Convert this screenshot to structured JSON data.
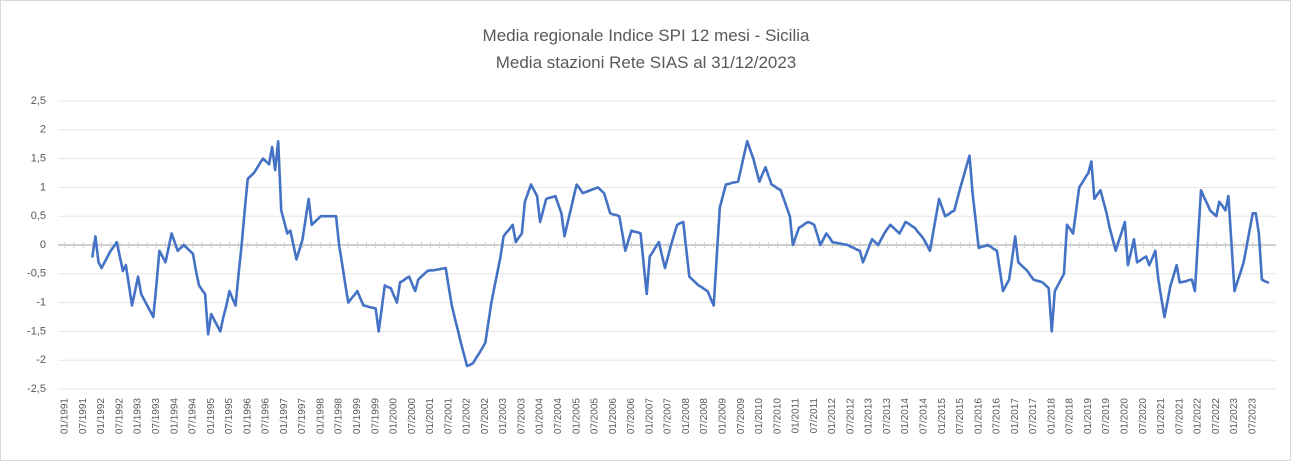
{
  "chart_data": {
    "type": "line",
    "title": "Media regionale Indice SPI 12 mesi - Sicilia",
    "subtitle": "Media stazioni Rete SIAS al 31/12/2023",
    "color": "#4472c4",
    "grid": true,
    "ylim": [
      -2.5,
      2.5
    ],
    "yticks": [
      {
        "value": -2.5,
        "label": "-2,5"
      },
      -2,
      {
        "value": -1.5,
        "label": "-1,5"
      },
      -1,
      {
        "value": -0.5,
        "label": "-0,5"
      },
      0,
      {
        "value": 0.5,
        "label": "0,5"
      },
      1,
      {
        "value": 1.5,
        "label": "1,5"
      },
      2,
      {
        "value": 2.5,
        "label": "2,5"
      }
    ],
    "categories": [
      "01/1991",
      null,
      null,
      null,
      null,
      null,
      "07/1991",
      null,
      null,
      null,
      null,
      null,
      "01/1992",
      null,
      null,
      null,
      null,
      null,
      "07/1992",
      null,
      null,
      null,
      null,
      null,
      "01/1993",
      null,
      null,
      null,
      null,
      null,
      "07/1993",
      null,
      null,
      null,
      null,
      null,
      "01/1994",
      null,
      null,
      null,
      null,
      null,
      "07/1994",
      null,
      null,
      null,
      null,
      null,
      "01/1995",
      null,
      null,
      null,
      null,
      null,
      "07/1995",
      null,
      null,
      null,
      null,
      null,
      "01/1996",
      null,
      null,
      null,
      null,
      null,
      "07/1996",
      null,
      null,
      null,
      null,
      null,
      "01/1997",
      null,
      null,
      null,
      null,
      null,
      "07/1997",
      null,
      null,
      null,
      null,
      null,
      "01/1998",
      null,
      null,
      null,
      null,
      null,
      "07/1998",
      null,
      null,
      null,
      null,
      null,
      "01/1999",
      null,
      null,
      null,
      null,
      null,
      "07/1999",
      null,
      null,
      null,
      null,
      null,
      "01/2000",
      null,
      null,
      null,
      null,
      null,
      "07/2000",
      null,
      null,
      null,
      null,
      null,
      "01/2001",
      null,
      null,
      null,
      null,
      null,
      "07/2001",
      null,
      null,
      null,
      null,
      null,
      "01/2002",
      null,
      null,
      null,
      null,
      null,
      "07/2002",
      null,
      null,
      null,
      null,
      null,
      "01/2003",
      null,
      null,
      null,
      null,
      null,
      "07/2003",
      null,
      null,
      null,
      null,
      null,
      "01/2004",
      null,
      null,
      null,
      null,
      null,
      "07/2004",
      null,
      null,
      null,
      null,
      null,
      "01/2005",
      null,
      null,
      null,
      null,
      null,
      "07/2005",
      null,
      null,
      null,
      null,
      null,
      "01/2006",
      null,
      null,
      null,
      null,
      null,
      "07/2006",
      null,
      null,
      null,
      null,
      null,
      "01/2007",
      null,
      null,
      null,
      null,
      null,
      "07/2007",
      null,
      null,
      null,
      null,
      null,
      "01/2008",
      null,
      null,
      null,
      null,
      null,
      "07/2008",
      null,
      null,
      null,
      null,
      null,
      "01/2009",
      null,
      null,
      null,
      null,
      null,
      "07/2009",
      null,
      null,
      null,
      null,
      null,
      "01/2010",
      null,
      null,
      null,
      null,
      null,
      "07/2010",
      null,
      null,
      null,
      null,
      null,
      "01/2011",
      null,
      null,
      null,
      null,
      null,
      "07/2011",
      null,
      null,
      null,
      null,
      null,
      "01/2012",
      null,
      null,
      null,
      null,
      null,
      "07/2012",
      null,
      null,
      null,
      null,
      null,
      "01/2013",
      null,
      null,
      null,
      null,
      null,
      "07/2013",
      null,
      null,
      null,
      null,
      null,
      "01/2014",
      null,
      null,
      null,
      null,
      null,
      "07/2014",
      null,
      null,
      null,
      null,
      null,
      "01/2015",
      null,
      null,
      null,
      null,
      null,
      "07/2015",
      null,
      null,
      null,
      null,
      null,
      "01/2016",
      null,
      null,
      null,
      null,
      null,
      "07/2016",
      null,
      null,
      null,
      null,
      null,
      "01/2017",
      null,
      null,
      null,
      null,
      null,
      "07/2017",
      null,
      null,
      null,
      null,
      null,
      "01/2018",
      null,
      null,
      null,
      null,
      null,
      "07/2018",
      null,
      null,
      null,
      null,
      null,
      "01/2019",
      null,
      null,
      null,
      null,
      null,
      "07/2019",
      null,
      null,
      null,
      null,
      null,
      "01/2020",
      null,
      null,
      null,
      null,
      null,
      "07/2020",
      null,
      null,
      null,
      null,
      null,
      "01/2021",
      null,
      null,
      null,
      null,
      null,
      "07/2021",
      null,
      null,
      null,
      null,
      null,
      "01/2022",
      null,
      null,
      null,
      null,
      null,
      "07/2022",
      null,
      null,
      null,
      null,
      null,
      "01/2023",
      null,
      null,
      null,
      null,
      null,
      "07/2023",
      null,
      null,
      null,
      null,
      null
    ],
    "values": [
      null,
      null,
      null,
      null,
      null,
      null,
      null,
      null,
      null,
      -0.2,
      0.15,
      -0.3,
      -0.4,
      -0.3,
      -0.2,
      -0.1,
      -0.03,
      0.05,
      -0.2,
      -0.45,
      -0.35,
      -0.7,
      -1.05,
      -0.8,
      -0.55,
      -0.85,
      -0.95,
      -1.05,
      -1.15,
      -1.25,
      -0.7,
      -0.1,
      -0.2,
      -0.3,
      -0.05,
      0.2,
      0.05,
      -0.1,
      -0.05,
      0.0,
      -0.05,
      -0.1,
      -0.15,
      -0.45,
      -0.7,
      -0.78,
      -0.85,
      -1.55,
      -1.2,
      -1.3,
      -1.4,
      -1.5,
      -1.25,
      -1.05,
      -0.8,
      -0.93,
      -1.05,
      -0.5,
      0.0,
      0.6,
      1.15,
      1.2,
      1.25,
      1.33,
      1.42,
      1.5,
      1.45,
      1.4,
      1.7,
      1.3,
      1.8,
      0.6,
      0.4,
      0.2,
      0.25,
      0.0,
      -0.25,
      -0.08,
      0.1,
      0.45,
      0.8,
      0.35,
      0.4,
      0.45,
      0.5,
      0.5,
      0.5,
      0.5,
      0.5,
      0.5,
      0.0,
      -0.33,
      -0.67,
      -1.0,
      -0.93,
      -0.87,
      -0.8,
      -0.93,
      -1.05,
      -1.06,
      -1.08,
      -1.09,
      -1.1,
      -1.5,
      -1.1,
      -0.7,
      -0.73,
      -0.75,
      -0.88,
      -1.0,
      -0.65,
      -0.62,
      -0.58,
      -0.55,
      -0.68,
      -0.8,
      -0.6,
      -0.55,
      -0.5,
      -0.45,
      -0.44,
      -0.44,
      -0.43,
      -0.42,
      -0.41,
      -0.4,
      -0.73,
      -1.05,
      -1.27,
      -1.48,
      -1.7,
      -1.9,
      -2.1,
      -2.08,
      -2.05,
      -1.96,
      -1.88,
      -1.79,
      -1.7,
      -1.35,
      -1.0,
      -0.73,
      -0.47,
      -0.2,
      0.15,
      0.22,
      0.28,
      0.35,
      0.05,
      0.13,
      0.2,
      0.75,
      0.9,
      1.05,
      0.95,
      0.85,
      0.4,
      0.6,
      0.8,
      0.82,
      0.83,
      0.85,
      0.7,
      0.55,
      0.15,
      0.38,
      0.6,
      0.83,
      1.05,
      0.98,
      0.9,
      0.92,
      0.94,
      0.96,
      0.98,
      1.0,
      0.95,
      0.9,
      0.73,
      0.55,
      0.53,
      0.52,
      0.5,
      0.2,
      -0.1,
      0.08,
      0.25,
      0.23,
      0.22,
      0.2,
      -0.33,
      -0.85,
      -0.2,
      -0.12,
      -0.03,
      0.05,
      -0.18,
      -0.4,
      -0.2,
      0.0,
      0.18,
      0.35,
      0.38,
      0.4,
      -0.08,
      -0.55,
      -0.6,
      -0.65,
      -0.7,
      -0.73,
      -0.77,
      -0.8,
      -0.93,
      -1.05,
      -0.2,
      0.65,
      0.85,
      1.05,
      1.06,
      1.08,
      1.09,
      1.1,
      1.33,
      1.57,
      1.8,
      1.65,
      1.5,
      1.3,
      1.1,
      1.23,
      1.35,
      1.2,
      1.05,
      1.02,
      0.98,
      0.95,
      0.8,
      0.65,
      0.5,
      0.0,
      0.15,
      0.3,
      0.33,
      0.37,
      0.4,
      0.38,
      0.35,
      0.18,
      0.0,
      0.1,
      0.2,
      0.13,
      0.05,
      0.04,
      0.03,
      0.02,
      0.01,
      0.0,
      -0.03,
      -0.05,
      -0.08,
      -0.1,
      -0.3,
      -0.17,
      -0.03,
      0.1,
      0.05,
      0.0,
      0.1,
      0.2,
      0.28,
      0.35,
      0.3,
      0.25,
      0.2,
      0.3,
      0.4,
      0.37,
      0.33,
      0.3,
      0.23,
      0.17,
      0.1,
      0.0,
      -0.1,
      0.2,
      0.5,
      0.8,
      0.65,
      0.5,
      0.53,
      0.57,
      0.6,
      0.8,
      1.0,
      1.18,
      1.37,
      1.55,
      0.9,
      0.43,
      -0.05,
      -0.03,
      -0.02,
      0.0,
      -0.03,
      -0.07,
      -0.1,
      -0.45,
      -0.8,
      -0.7,
      -0.6,
      -0.23,
      0.15,
      -0.3,
      -0.35,
      -0.4,
      -0.45,
      -0.53,
      -0.6,
      -0.62,
      -0.63,
      -0.65,
      -0.7,
      -0.75,
      -1.5,
      -0.8,
      -0.7,
      -0.6,
      -0.5,
      0.35,
      0.28,
      0.2,
      0.6,
      1.0,
      1.08,
      1.17,
      1.25,
      1.45,
      0.8,
      0.88,
      0.95,
      0.75,
      0.55,
      0.3,
      0.1,
      -0.1,
      0.07,
      0.23,
      0.4,
      -0.35,
      -0.13,
      0.1,
      -0.3,
      -0.27,
      -0.23,
      -0.2,
      -0.35,
      -0.23,
      -0.1,
      -0.6,
      -0.93,
      -1.25,
      -0.98,
      -0.7,
      -0.53,
      -0.35,
      -0.65,
      -0.64,
      -0.63,
      -0.61,
      -0.6,
      -0.8,
      0.08,
      0.95,
      0.83,
      0.72,
      0.6,
      0.55,
      0.5,
      0.75,
      0.68,
      0.6,
      0.85,
      0.03,
      -0.8,
      -0.63,
      -0.47,
      -0.3,
      -0.02,
      0.27,
      0.55,
      0.55,
      0.2,
      -0.6,
      -0.63,
      -0.65
    ]
  }
}
